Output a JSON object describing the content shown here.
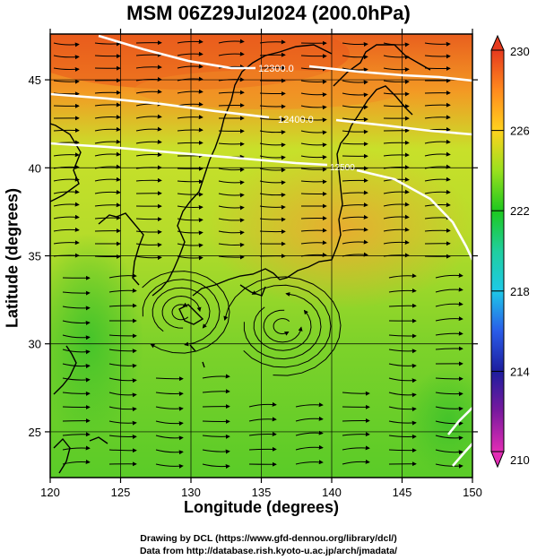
{
  "title": "MSM 06Z29Jul2024 (200.0hPa)",
  "x_axis_label": "Longitude (degrees)",
  "y_axis_label": "Latitude  (degrees)",
  "credit_line_1": "Drawing by DCL (https://www.gfd-dennou.org/library/dcl/)",
  "credit_line_2": "Data from http://database.rish.kyoto-u.ac.jp/arch/jmadata/",
  "map": {
    "lon_range": [
      120,
      150
    ],
    "lat_range": [
      22.4,
      47.6
    ],
    "lon_ticks": [
      "120",
      "125",
      "130",
      "135",
      "140",
      "145",
      "150"
    ],
    "lat_ticks": [
      "25",
      "30",
      "35",
      "40",
      "45"
    ],
    "contour_labels": [
      "12300.0",
      "12400.0",
      "12500"
    ],
    "colorbar_ticks": [
      "230",
      "226",
      "222",
      "218",
      "214",
      "210"
    ],
    "colorbar_range": [
      210,
      230
    ],
    "colorbar_stops": [
      {
        "value": 210,
        "color": "#e22db5"
      },
      {
        "value": 212,
        "color": "#7a1a9e"
      },
      {
        "value": 214,
        "color": "#1d1d9e"
      },
      {
        "value": 216,
        "color": "#2a5ce8"
      },
      {
        "value": 218,
        "color": "#1ec9e8"
      },
      {
        "value": 220,
        "color": "#1fcf9e"
      },
      {
        "value": 222,
        "color": "#1ec81e"
      },
      {
        "value": 224,
        "color": "#9ae01e"
      },
      {
        "value": 226,
        "color": "#ffd21e"
      },
      {
        "value": 228,
        "color": "#ff8a1e"
      },
      {
        "value": 230,
        "color": "#e63a1e"
      }
    ]
  }
}
